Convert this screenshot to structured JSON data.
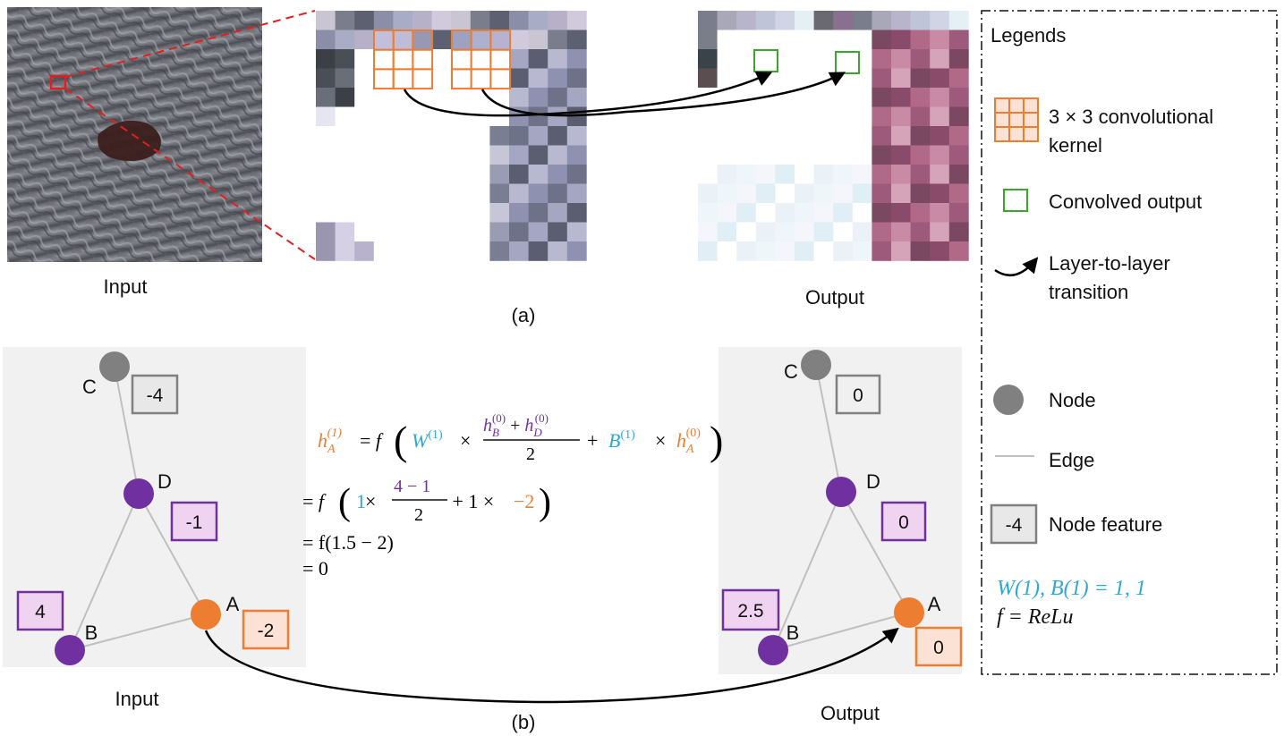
{
  "panel_a": {
    "caption": "(a)",
    "input_label": "Input",
    "output_label": "Output"
  },
  "panel_b": {
    "caption": "(b)",
    "input_label": "Input",
    "output_label": "Output",
    "input_graph": {
      "nodes": [
        {
          "id": "C",
          "label": "C",
          "feature": "-4",
          "color": "#808080",
          "box_fill": "#e8e8e8",
          "box_stroke": "#808080"
        },
        {
          "id": "D",
          "label": "D",
          "feature": "-1",
          "color": "#7030a0",
          "box_fill": "#efd3f0",
          "box_stroke": "#7030a0"
        },
        {
          "id": "B",
          "label": "B",
          "feature": "4",
          "color": "#7030a0",
          "box_fill": "#efd3f0",
          "box_stroke": "#7030a0"
        },
        {
          "id": "A",
          "label": "A",
          "feature": "-2",
          "color": "#ed7d31",
          "box_fill": "#fbe2d5",
          "box_stroke": "#ed7d31"
        }
      ],
      "edges": [
        [
          "C",
          "D"
        ],
        [
          "D",
          "B"
        ],
        [
          "D",
          "A"
        ],
        [
          "B",
          "A"
        ]
      ]
    },
    "output_graph": {
      "nodes": [
        {
          "id": "C",
          "label": "C",
          "feature": "0",
          "color": "#808080",
          "box_fill": "#f0f0f0",
          "box_stroke": "#808080"
        },
        {
          "id": "D",
          "label": "D",
          "feature": "0",
          "color": "#7030a0",
          "box_fill": "#efd3f0",
          "box_stroke": "#7030a0"
        },
        {
          "id": "B",
          "label": "B",
          "feature": "2.5",
          "color": "#7030a0",
          "box_fill": "#efd3f0",
          "box_stroke": "#7030a0"
        },
        {
          "id": "A",
          "label": "A",
          "feature": "0",
          "color": "#ed7d31",
          "box_fill": "#fbe2d5",
          "box_stroke": "#ed7d31"
        }
      ],
      "edges": [
        [
          "C",
          "D"
        ],
        [
          "D",
          "B"
        ],
        [
          "D",
          "A"
        ],
        [
          "B",
          "A"
        ]
      ]
    },
    "equation": {
      "line2": [
        "= ",
        "f",
        "(",
        "1",
        " × ",
        "4 − 1",
        "2",
        " + 1 × ",
        "−2",
        ")"
      ],
      "line3": "= f(1.5 − 2)",
      "line4": "= 0"
    }
  },
  "legend": {
    "title": "Legends",
    "kernel_line1": "3 × 3 convolutional",
    "kernel_line2": "kernel",
    "convolved": "Convolved output",
    "transition_line1": "Layer-to-layer",
    "transition_line2": "transition",
    "node": "Node",
    "edge": "Edge",
    "feature_sample": "-4",
    "node_feature": "Node feature",
    "params": "W(1), B(1) = 1, 1",
    "activation": "f = ReLu"
  },
  "colors": {
    "orange": "#ed7d31",
    "purple": "#7030a0",
    "cyan": "#2ea8d8",
    "gray": "#808080",
    "green": "#3aa62d",
    "red_dashed": "#e02020"
  }
}
